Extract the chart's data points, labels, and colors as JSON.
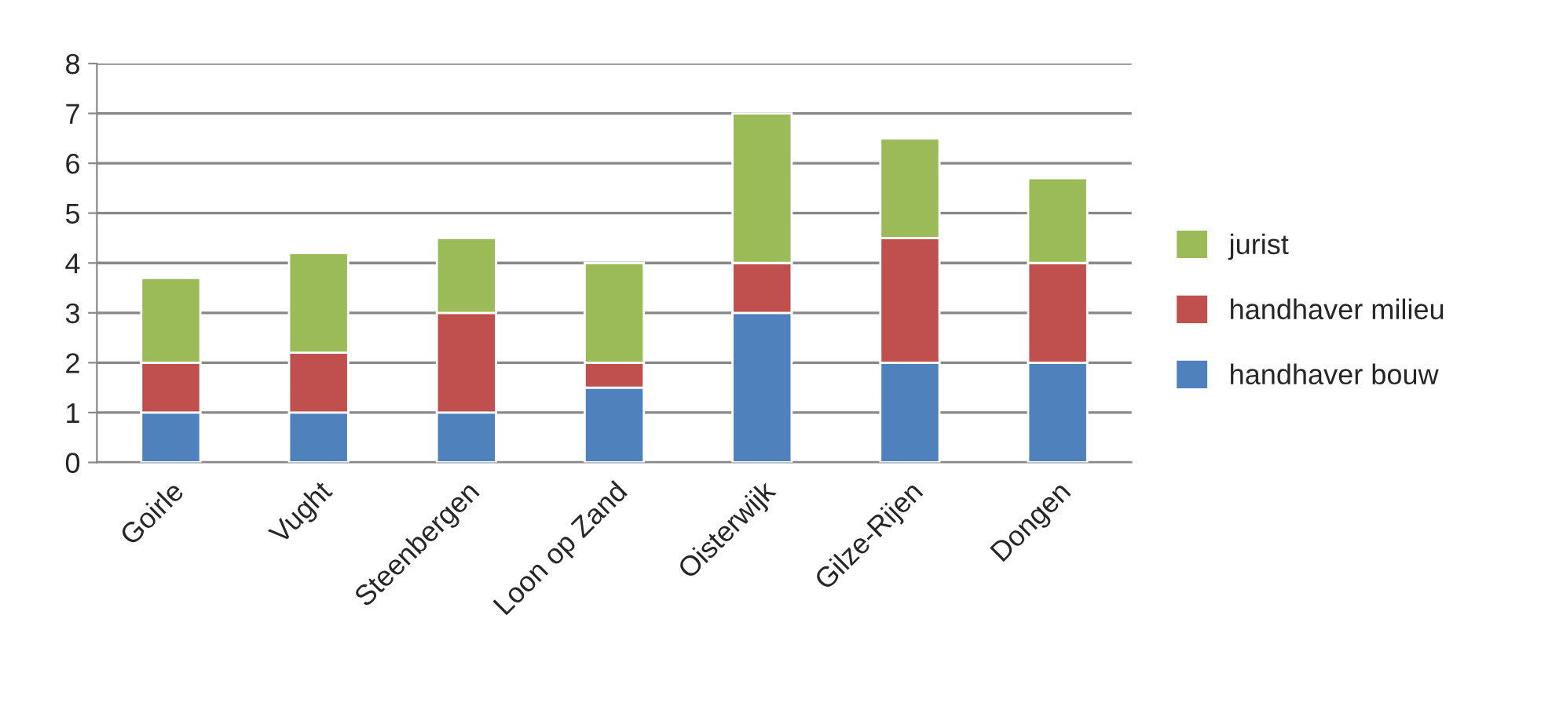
{
  "chart_data": {
    "type": "bar",
    "stacked": true,
    "categories": [
      "Goirle",
      "Vught",
      "Steenbergen",
      "Loon op Zand",
      "Oisterwijk",
      "Gilze-Rijen",
      "Dongen"
    ],
    "series": [
      {
        "name": "handhaver bouw",
        "color": "#4f81bd",
        "values": [
          1,
          1,
          1,
          1.5,
          3,
          2,
          2
        ]
      },
      {
        "name": "handhaver milieu",
        "color": "#c0504d",
        "values": [
          1,
          1.2,
          2,
          0.5,
          1,
          2.5,
          2
        ]
      },
      {
        "name": "jurist",
        "color": "#9bbb59",
        "values": [
          1.7,
          2,
          1.5,
          2,
          3,
          2,
          1.7
        ]
      }
    ],
    "ylim": [
      0,
      8
    ],
    "yticks": [
      0,
      1,
      2,
      3,
      4,
      5,
      6,
      7,
      8
    ],
    "grid": "y",
    "legend": "right"
  }
}
